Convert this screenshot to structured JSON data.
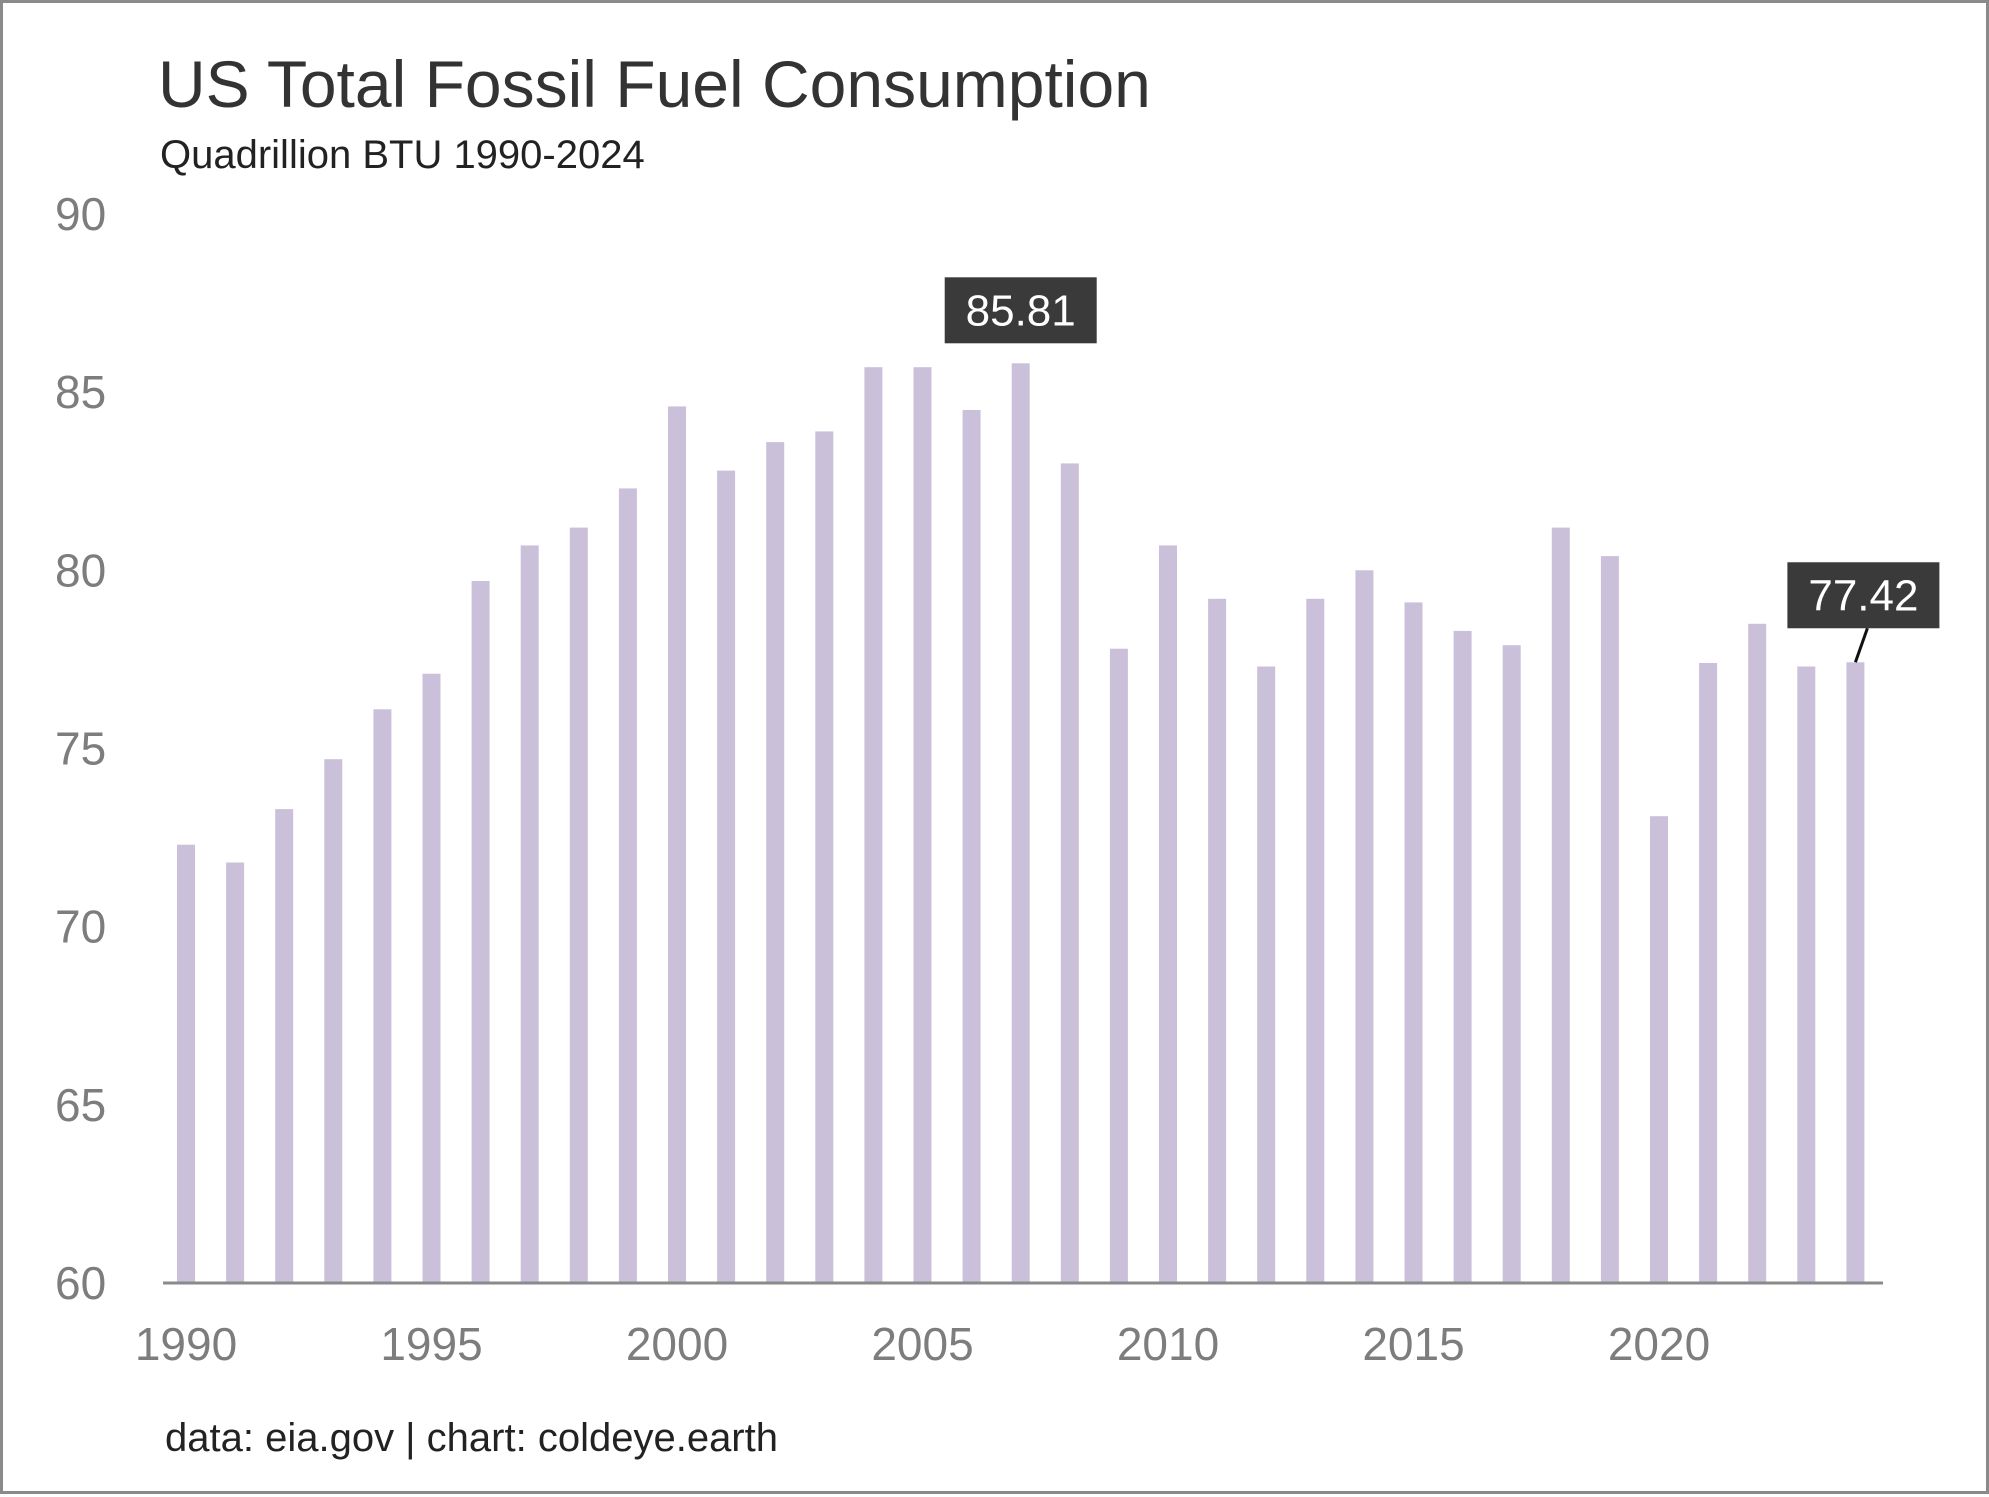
{
  "chart_data": {
    "type": "bar",
    "title": "US Total Fossil Fuel Consumption",
    "subtitle": "Quadrillion BTU 1990-2024",
    "source": "data: eia.gov | chart: coldeye.earth",
    "xlabel": "",
    "ylabel": "",
    "ylim": [
      60,
      90
    ],
    "y_ticks": [
      "60",
      "65",
      "70",
      "75",
      "80",
      "85",
      "90"
    ],
    "x_ticks": [
      "1990",
      "1995",
      "2000",
      "2005",
      "2010",
      "2015",
      "2020"
    ],
    "grid": false,
    "bar_color": "#cbc0da",
    "callout_color": "#3a3a3a",
    "categories": [
      1990,
      1991,
      1992,
      1993,
      1994,
      1995,
      1996,
      1997,
      1998,
      1999,
      2000,
      2001,
      2002,
      2003,
      2004,
      2005,
      2006,
      2007,
      2008,
      2009,
      2010,
      2011,
      2012,
      2013,
      2014,
      2015,
      2016,
      2017,
      2018,
      2019,
      2020,
      2021,
      2022,
      2023,
      2024
    ],
    "values": [
      72.3,
      71.8,
      73.3,
      74.7,
      76.1,
      77.1,
      79.7,
      80.7,
      81.2,
      82.3,
      84.6,
      82.8,
      83.6,
      83.9,
      85.7,
      85.7,
      84.5,
      85.81,
      83.0,
      77.8,
      80.7,
      79.2,
      77.3,
      79.2,
      80.0,
      79.1,
      78.3,
      77.9,
      81.2,
      80.4,
      73.1,
      77.4,
      78.5,
      77.3,
      77.42
    ],
    "annotations": [
      {
        "year": 2007,
        "label": "85.81"
      },
      {
        "year": 2024,
        "label": "77.42"
      }
    ]
  }
}
